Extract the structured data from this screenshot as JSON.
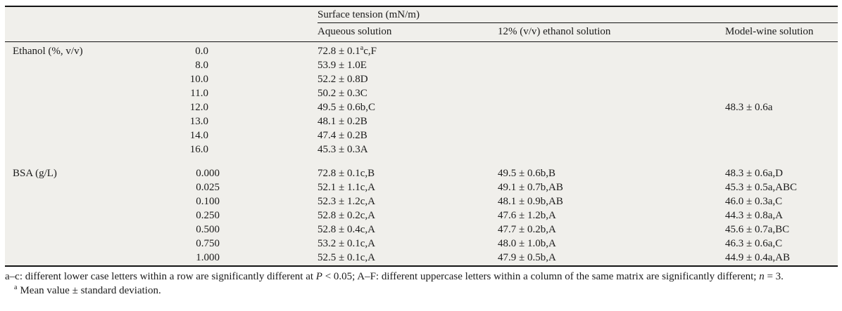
{
  "table": {
    "group_header": "Surface tension (mN/m)",
    "column_headers": [
      "Aqueous solution",
      "12% (v/v) ethanol solution",
      "Model-wine solution"
    ],
    "sections": [
      {
        "label": "Ethanol (%, v/v)",
        "rows": [
          {
            "conc": "0.0",
            "aqueous": "72.8 ± 0.1^a^c,F",
            "ethanol12": "",
            "model_wine": ""
          },
          {
            "conc": "8.0",
            "aqueous": "53.9 ± 1.0E",
            "ethanol12": "",
            "model_wine": ""
          },
          {
            "conc": "10.0",
            "aqueous": "52.2 ± 0.8D",
            "ethanol12": "",
            "model_wine": ""
          },
          {
            "conc": "11.0",
            "aqueous": "50.2 ± 0.3C",
            "ethanol12": "",
            "model_wine": ""
          },
          {
            "conc": "12.0",
            "aqueous": "49.5 ± 0.6b,C",
            "ethanol12": "",
            "model_wine": "48.3 ± 0.6a"
          },
          {
            "conc": "13.0",
            "aqueous": "48.1 ± 0.2B",
            "ethanol12": "",
            "model_wine": ""
          },
          {
            "conc": "14.0",
            "aqueous": "47.4 ± 0.2B",
            "ethanol12": "",
            "model_wine": ""
          },
          {
            "conc": "16.0",
            "aqueous": "45.3 ± 0.3A",
            "ethanol12": "",
            "model_wine": ""
          }
        ]
      },
      {
        "label": "BSA (g/L)",
        "rows": [
          {
            "conc": "0.000",
            "aqueous": "72.8 ± 0.1c,B",
            "ethanol12": "49.5 ± 0.6b,B",
            "model_wine": "48.3 ± 0.6a,D"
          },
          {
            "conc": "0.025",
            "aqueous": "52.1 ± 1.1c,A",
            "ethanol12": "49.1 ± 0.7b,AB",
            "model_wine": "45.3 ± 0.5a,ABC"
          },
          {
            "conc": "0.100",
            "aqueous": "52.3 ± 1.2c,A",
            "ethanol12": "48.1 ± 0.9b,AB",
            "model_wine": "46.0 ± 0.3a,C"
          },
          {
            "conc": "0.250",
            "aqueous": "52.8 ± 0.2c,A",
            "ethanol12": "47.6 ± 1.2b,A",
            "model_wine": "44.3 ± 0.8a,A"
          },
          {
            "conc": "0.500",
            "aqueous": "52.8 ± 0.4c,A",
            "ethanol12": "47.7 ± 0.2b,A",
            "model_wine": "45.6 ± 0.7a,BC"
          },
          {
            "conc": "0.750",
            "aqueous": "53.2 ± 0.1c,A",
            "ethanol12": "48.0 ± 1.0b,A",
            "model_wine": "46.3 ± 0.6a,C"
          },
          {
            "conc": "1.000",
            "aqueous": "52.5 ± 0.1c,A",
            "ethanol12": "47.9 ± 0.5b,A",
            "model_wine": "44.9 ± 0.4a,AB"
          }
        ]
      }
    ]
  },
  "footnotes": {
    "note1": {
      "t1": "a–c: different lower case letters within a row are significantly different at ",
      "p": "P",
      "t2": " < 0.05; A–F: different uppercase letters within a column of the same matrix are significantly different; ",
      "n": "n",
      "t3": " = 3."
    },
    "note2": {
      "marker": "a",
      "text": "Mean value ± standard deviation."
    }
  },
  "colors": {
    "table_background": "#f0efeb",
    "rule": "#141414",
    "text": "#1b1b1b"
  }
}
